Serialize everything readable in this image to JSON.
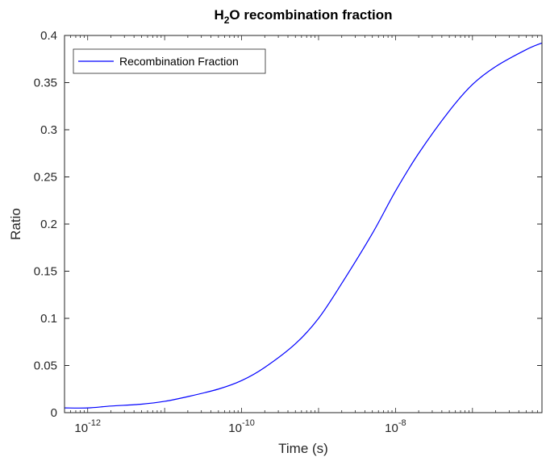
{
  "chart_data": {
    "type": "line",
    "title_main": "H",
    "title_sub": "2",
    "title_rest": "O recombination fraction",
    "xlabel": "Time (s)",
    "ylabel": "Ratio",
    "x_scale": "log",
    "xlim": [
      5e-13,
      8e-07
    ],
    "ylim": [
      0,
      0.4
    ],
    "grid": false,
    "legend_placement": "top-left",
    "y_ticks": [
      "0",
      "0.05",
      "0.1",
      "0.15",
      "0.2",
      "0.25",
      "0.3",
      "0.35",
      "0.4"
    ],
    "x_ticks": [
      {
        "base": "10",
        "exp": "-12",
        "value": 1e-12
      },
      {
        "base": "10",
        "exp": "-10",
        "value": 1e-10
      },
      {
        "base": "10",
        "exp": "-8",
        "value": 1e-08
      }
    ],
    "series": [
      {
        "name": "Recombination Fraction",
        "color": "#0000ff",
        "x": [
          5e-13,
          1e-12,
          2e-12,
          5e-12,
          1e-11,
          2e-11,
          5e-11,
          1e-10,
          2e-10,
          5e-10,
          1e-09,
          2e-09,
          5e-09,
          1e-08,
          2e-08,
          5e-08,
          1e-07,
          2e-07,
          5e-07,
          8e-07
        ],
        "y": [
          0.005,
          0.005,
          0.007,
          0.009,
          0.012,
          0.017,
          0.025,
          0.034,
          0.048,
          0.073,
          0.1,
          0.137,
          0.19,
          0.235,
          0.275,
          0.32,
          0.348,
          0.367,
          0.385,
          0.392
        ]
      }
    ]
  }
}
